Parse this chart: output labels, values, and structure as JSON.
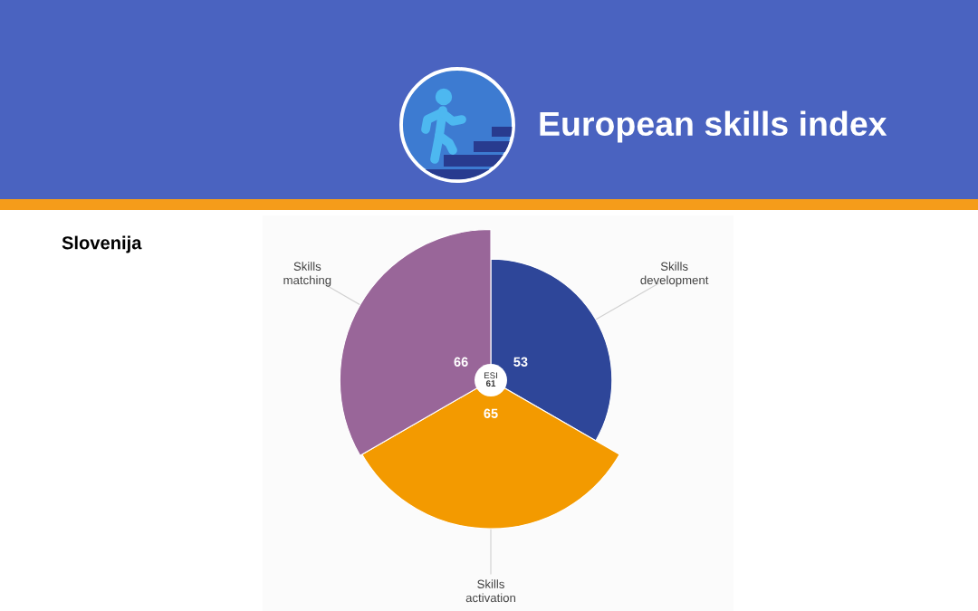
{
  "chart_data": {
    "type": "other",
    "title": "European skills index",
    "subtitle": "Slovenija",
    "categories": [
      "Skills\ndevelopment",
      "Skills\nactivation",
      "Skills\nmatching"
    ],
    "values": [
      53,
      65,
      66
    ],
    "colors": [
      "#2e4699",
      "#f39a00",
      "#996699"
    ],
    "data_labels": true,
    "annotations": [
      "ESI",
      "61"
    ]
  }
}
